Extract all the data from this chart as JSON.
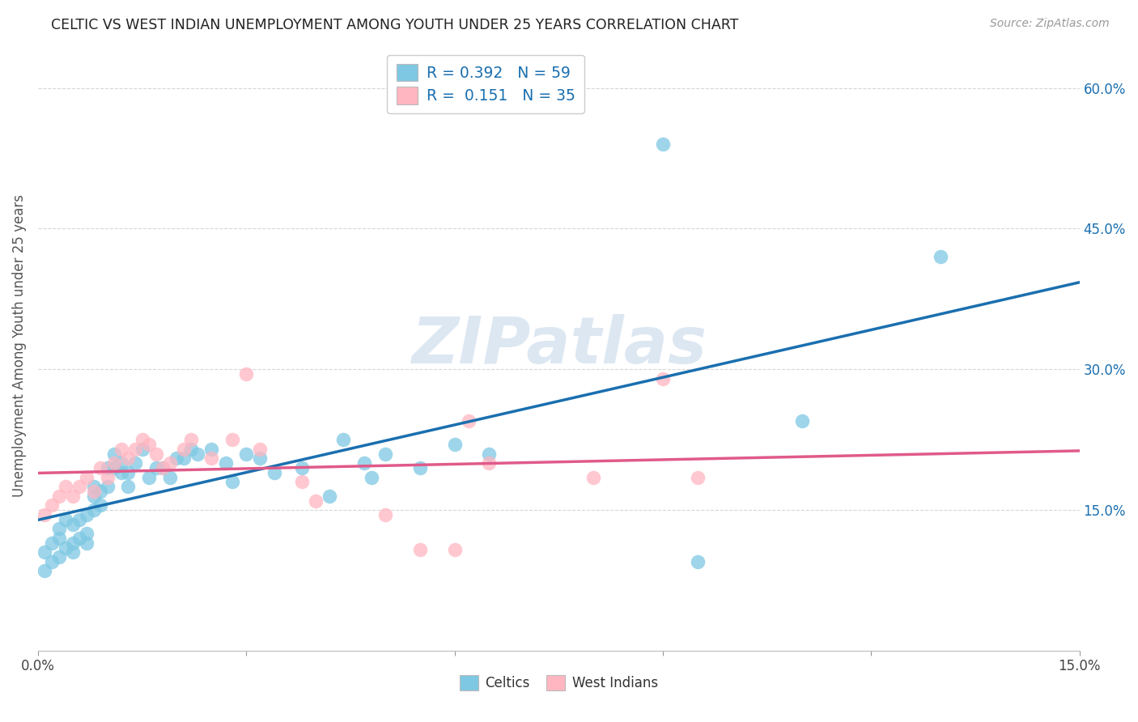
{
  "title": "CELTIC VS WEST INDIAN UNEMPLOYMENT AMONG YOUTH UNDER 25 YEARS CORRELATION CHART",
  "source": "Source: ZipAtlas.com",
  "ylabel": "Unemployment Among Youth under 25 years",
  "xlim": [
    0.0,
    0.15
  ],
  "ylim": [
    0.0,
    0.65
  ],
  "xticks": [
    0.0,
    0.03,
    0.06,
    0.09,
    0.12,
    0.15
  ],
  "xtick_labels": [
    "0.0%",
    "",
    "",
    "",
    "",
    "15.0%"
  ],
  "ytick_positions": [
    0.15,
    0.3,
    0.45,
    0.6
  ],
  "ytick_labels": [
    "15.0%",
    "30.0%",
    "45.0%",
    "60.0%"
  ],
  "celtics_R": "0.392",
  "celtics_N": "59",
  "westindians_R": "0.151",
  "westindians_N": "35",
  "celtics_color": "#7ec8e3",
  "westindians_color": "#ffb6c1",
  "celtics_line_color": "#1a6faf",
  "westindians_line_color": "#e05a8a",
  "accent_color": "#1a6faf",
  "watermark_color": "#c5d8ea",
  "celtics_x": [
    0.001,
    0.001,
    0.002,
    0.002,
    0.003,
    0.003,
    0.003,
    0.004,
    0.004,
    0.005,
    0.005,
    0.005,
    0.006,
    0.006,
    0.007,
    0.007,
    0.007,
    0.008,
    0.008,
    0.008,
    0.009,
    0.009,
    0.01,
    0.01,
    0.011,
    0.011,
    0.012,
    0.012,
    0.013,
    0.013,
    0.014,
    0.015,
    0.016,
    0.017,
    0.018,
    0.019,
    0.02,
    0.021,
    0.022,
    0.023,
    0.025,
    0.027,
    0.028,
    0.03,
    0.032,
    0.034,
    0.038,
    0.042,
    0.044,
    0.047,
    0.048,
    0.05,
    0.055,
    0.06,
    0.065,
    0.09,
    0.095,
    0.11,
    0.13
  ],
  "celtics_y": [
    0.085,
    0.105,
    0.095,
    0.115,
    0.1,
    0.12,
    0.13,
    0.11,
    0.14,
    0.105,
    0.115,
    0.135,
    0.12,
    0.14,
    0.115,
    0.125,
    0.145,
    0.165,
    0.175,
    0.15,
    0.155,
    0.17,
    0.175,
    0.195,
    0.195,
    0.21,
    0.19,
    0.2,
    0.175,
    0.19,
    0.2,
    0.215,
    0.185,
    0.195,
    0.195,
    0.185,
    0.205,
    0.205,
    0.215,
    0.21,
    0.215,
    0.2,
    0.18,
    0.21,
    0.205,
    0.19,
    0.195,
    0.165,
    0.225,
    0.2,
    0.185,
    0.21,
    0.195,
    0.22,
    0.21,
    0.54,
    0.095,
    0.245,
    0.42
  ],
  "westindians_x": [
    0.001,
    0.002,
    0.003,
    0.004,
    0.005,
    0.006,
    0.007,
    0.008,
    0.009,
    0.01,
    0.011,
    0.012,
    0.013,
    0.014,
    0.015,
    0.016,
    0.017,
    0.018,
    0.019,
    0.021,
    0.022,
    0.025,
    0.028,
    0.03,
    0.032,
    0.038,
    0.04,
    0.05,
    0.055,
    0.06,
    0.062,
    0.065,
    0.08,
    0.09,
    0.095
  ],
  "westindians_y": [
    0.145,
    0.155,
    0.165,
    0.175,
    0.165,
    0.175,
    0.185,
    0.17,
    0.195,
    0.185,
    0.2,
    0.215,
    0.205,
    0.215,
    0.225,
    0.22,
    0.21,
    0.195,
    0.2,
    0.215,
    0.225,
    0.205,
    0.225,
    0.295,
    0.215,
    0.18,
    0.16,
    0.145,
    0.108,
    0.108,
    0.245,
    0.2,
    0.185,
    0.29,
    0.185
  ]
}
